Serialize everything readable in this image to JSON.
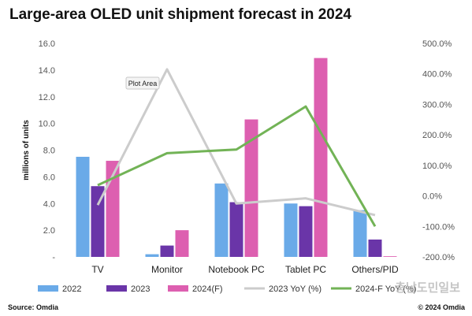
{
  "chart_data": {
    "type": "bar",
    "title": "Large-area OLED unit shipment forecast in 2024",
    "ylabel": "millions of units",
    "ylim": [
      0,
      16
    ],
    "y2lim": [
      -200,
      500
    ],
    "yticks": [
      "-",
      "2.0",
      "4.0",
      "6.0",
      "8.0",
      "10.0",
      "12.0",
      "14.0",
      "16.0"
    ],
    "y2ticks": [
      "-200.0%",
      "-100.0%",
      "0.0%",
      "100.0%",
      "200.0%",
      "300.0%",
      "400.0%",
      "500.0%"
    ],
    "categories": [
      "TV",
      "Monitor",
      "Notebook PC",
      "Tablet PC",
      "Others/PID"
    ],
    "series": [
      {
        "name": "2022",
        "type": "bar",
        "color": "#6aaae8",
        "values": [
          7.5,
          0.2,
          5.5,
          4.0,
          3.5
        ]
      },
      {
        "name": "2023",
        "type": "bar",
        "color": "#6a35a8",
        "values": [
          5.3,
          0.85,
          4.1,
          3.8,
          1.3
        ]
      },
      {
        "name": "2024(F)",
        "type": "bar",
        "color": "#dd5fb0",
        "values": [
          7.2,
          2.0,
          10.3,
          14.9,
          0.05
        ]
      },
      {
        "name": "2023 YoY (%)",
        "type": "line",
        "axis": "right",
        "color": "#cccccc",
        "values": [
          -30,
          415,
          -25,
          -8,
          -63
        ]
      },
      {
        "name": "2024-F YoY (%)",
        "type": "line",
        "axis": "right",
        "color": "#72b356",
        "values": [
          35,
          140,
          152,
          293,
          -100
        ]
      }
    ],
    "legend_position": "bottom",
    "grid": false,
    "tooltip": "Plot Area",
    "source": "Source: Omdia",
    "copyright": "© 2024 Omdia",
    "watermark": "충남도민일보"
  }
}
